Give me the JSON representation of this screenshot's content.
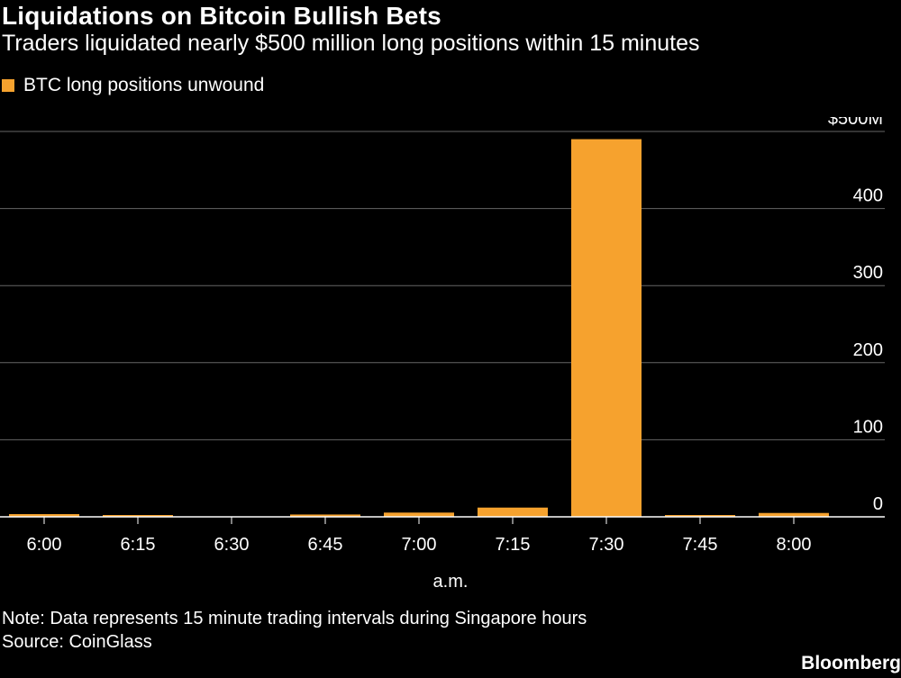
{
  "header": {
    "title": "Liquidations on Bitcoin Bullish Bets",
    "subtitle": "Traders liquidated nearly $500 million long positions within 15 minutes"
  },
  "footer": {
    "note": "Note: Data represents 15 minute trading intervals during Singapore hours",
    "source": "Source: CoinGlass",
    "brand": "Bloomberg"
  },
  "chart_data": {
    "type": "bar",
    "title": "Liquidations on Bitcoin Bullish Bets",
    "subtitle": "Traders liquidated nearly $500 million long positions within 15 minutes",
    "xlabel": "a.m.",
    "ylabel": "",
    "categories": [
      "6:00",
      "6:15",
      "6:30",
      "6:45",
      "7:00",
      "7:15",
      "7:30",
      "7:45",
      "8:00"
    ],
    "series": [
      {
        "name": "BTC long positions unwound",
        "color": "#f6a22e",
        "values": [
          3.5,
          1.5,
          0,
          3,
          5.5,
          12,
          490,
          1,
          5
        ]
      }
    ],
    "ylim": [
      0,
      500
    ],
    "yticks": [
      0,
      100,
      200,
      300,
      400,
      500
    ],
    "ytick_labels": [
      "0",
      "100",
      "200",
      "300",
      "400",
      "$500M"
    ],
    "grid": true,
    "legend": "top-left"
  }
}
